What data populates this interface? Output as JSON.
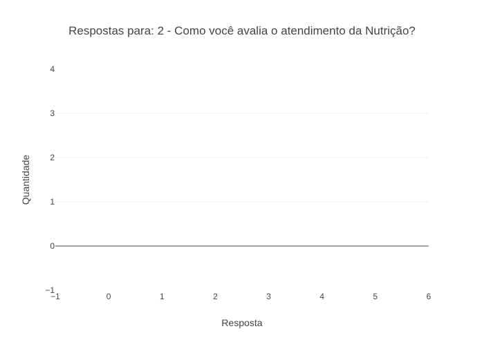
{
  "chart_data": {
    "type": "bar",
    "title": "Respostas para: 2 - Como você avalia o atendimento da Nutrição?",
    "xlabel": "Resposta",
    "ylabel": "Quantidade",
    "xlim": [
      -1,
      6
    ],
    "ylim": [
      -1,
      4
    ],
    "x_ticks": [
      "−1",
      "0",
      "1",
      "2",
      "3",
      "4",
      "5",
      "6"
    ],
    "y_ticks": [
      "−1",
      "0",
      "1",
      "2",
      "3",
      "4"
    ],
    "x": [],
    "values": [],
    "grid": true,
    "colors": {
      "text": "#444444",
      "grid": "#eeeeee",
      "zeroline": "#444444",
      "background": "#ffffff"
    }
  }
}
